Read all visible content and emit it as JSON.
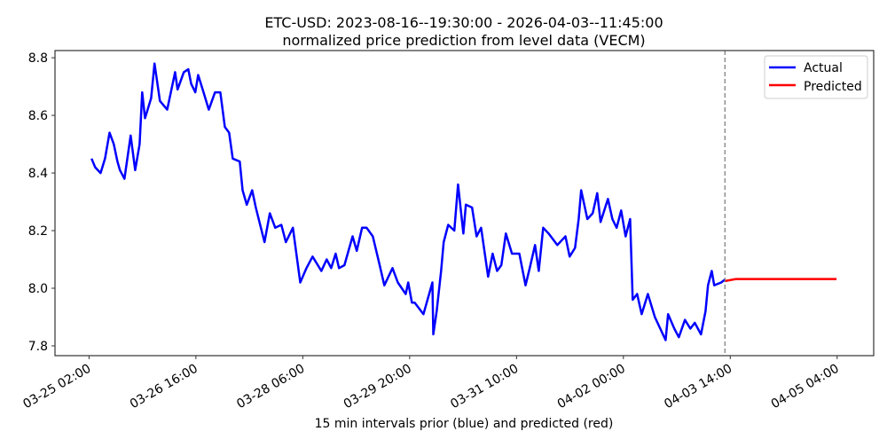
{
  "chart_data": {
    "type": "line",
    "title": "ETC-USD: 2023-08-16--19:30:00 - 2026-04-03--11:45:00",
    "subtitle": "normalized price prediction from level data (VECM)",
    "xlabel": "15 min intervals prior (blue) and predicted (red)",
    "ylabel": "",
    "x_units": "hours since 03-25 02:00",
    "xlim": [
      -12.1,
      279
    ],
    "ylim": [
      7.766,
      8.825
    ],
    "grid": false,
    "legend_placement": "top-right",
    "yticks": [
      7.8,
      8.0,
      8.2,
      8.4,
      8.6,
      8.8
    ],
    "ytick_labels": [
      "7.8",
      "8.0",
      "8.2",
      "8.4",
      "8.6",
      "8.8"
    ],
    "xticks": [
      0,
      38,
      76,
      114,
      152,
      190,
      228,
      266
    ],
    "xtick_labels": [
      "03-25 02:00",
      "03-26 16:00",
      "03-28 06:00",
      "03-29 20:00",
      "03-31 10:00",
      "04-02 00:00",
      "04-03 14:00",
      "04-05 04:00"
    ],
    "forecast_start": 226.1,
    "series": [
      {
        "name": "Actual",
        "color": "#0000ff",
        "x": [
          0.9,
          2.2,
          4.1,
          5.7,
          7.3,
          8.8,
          10.1,
          11.0,
          12.6,
          14.8,
          16.4,
          18.0,
          18.9,
          19.9,
          22.1,
          23.3,
          25.2,
          27.8,
          30.6,
          31.5,
          33.7,
          35.3,
          36.3,
          37.8,
          38.8,
          40.4,
          42.6,
          44.8,
          46.7,
          48.3,
          49.8,
          51.1,
          53.6,
          54.6,
          56.1,
          58.0,
          59.3,
          62.4,
          64.3,
          66.2,
          68.4,
          70.0,
          72.5,
          75.1,
          77.3,
          79.5,
          82.6,
          84.5,
          86.1,
          87.7,
          88.9,
          90.8,
          93.7,
          95.2,
          97.1,
          98.7,
          100.9,
          103.1,
          105.0,
          107.9,
          109.8,
          112.6,
          113.5,
          114.8,
          115.8,
          118.9,
          122.1,
          122.4,
          123.6,
          125.2,
          126.1,
          127.7,
          129.9,
          131.2,
          133.1,
          134.0,
          136.2,
          137.8,
          139.4,
          141.9,
          143.5,
          145.1,
          146.6,
          148.2,
          150.4,
          153.0,
          155.2,
          156.7,
          158.6,
          159.9,
          161.5,
          163.4,
          166.5,
          169.4,
          170.9,
          172.8,
          174.1,
          175.0,
          177.2,
          179.1,
          180.7,
          181.9,
          184.5,
          186.1,
          187.6,
          189.2,
          190.8,
          192.4,
          193.3,
          194.9,
          196.5,
          198.7,
          201.2,
          205.0,
          205.9,
          208.1,
          209.7,
          211.9,
          213.8,
          215.4,
          217.6,
          219.2,
          220.1,
          221.4,
          222.3,
          224.8,
          226.1
        ],
        "y": [
          8.45,
          8.42,
          8.4,
          8.45,
          8.54,
          8.5,
          8.44,
          8.41,
          8.38,
          8.53,
          8.41,
          8.5,
          8.68,
          8.59,
          8.66,
          8.78,
          8.65,
          8.62,
          8.75,
          8.69,
          8.75,
          8.76,
          8.71,
          8.68,
          8.74,
          8.69,
          8.62,
          8.68,
          8.68,
          8.56,
          8.54,
          8.45,
          8.44,
          8.34,
          8.29,
          8.34,
          8.28,
          8.16,
          8.26,
          8.21,
          8.22,
          8.16,
          8.21,
          8.02,
          8.07,
          8.11,
          8.06,
          8.1,
          8.07,
          8.12,
          8.07,
          8.08,
          8.18,
          8.13,
          8.21,
          8.21,
          8.18,
          8.09,
          8.01,
          8.07,
          8.02,
          7.98,
          8.02,
          7.95,
          7.95,
          7.91,
          8.02,
          7.84,
          7.92,
          8.06,
          8.16,
          8.22,
          8.2,
          8.36,
          8.19,
          8.29,
          8.28,
          8.18,
          8.21,
          8.04,
          8.12,
          8.06,
          8.08,
          8.19,
          8.12,
          8.12,
          8.01,
          8.07,
          8.15,
          8.06,
          8.21,
          8.19,
          8.15,
          8.18,
          8.11,
          8.14,
          8.24,
          8.34,
          8.24,
          8.26,
          8.33,
          8.23,
          8.31,
          8.24,
          8.21,
          8.27,
          8.18,
          8.24,
          7.96,
          7.98,
          7.91,
          7.98,
          7.9,
          7.82,
          7.91,
          7.86,
          7.83,
          7.89,
          7.86,
          7.88,
          7.84,
          7.92,
          8.01,
          8.06,
          8.01,
          8.02,
          8.03
        ]
      },
      {
        "name": "Predicted",
        "color": "#ff0000",
        "x": [
          226.1,
          230,
          240,
          250,
          260,
          265.8
        ],
        "y": [
          8.025,
          8.032,
          8.032,
          8.032,
          8.032,
          8.032
        ]
      }
    ]
  }
}
